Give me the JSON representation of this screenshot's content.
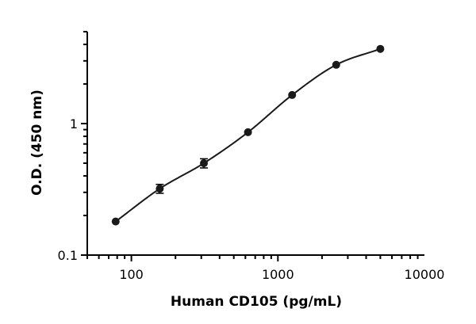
{
  "chart_data": {
    "type": "scatter",
    "xlabel": "Human CD105 (pg/mL)",
    "ylabel": "O.D. (450 nm)",
    "x_scale": "log",
    "y_scale": "log",
    "xlim": [
      50,
      10000
    ],
    "ylim": [
      0.1,
      5
    ],
    "x_ticks": [
      {
        "value": 100,
        "label": "100"
      },
      {
        "value": 1000,
        "label": "1000"
      },
      {
        "value": 10000,
        "label": "10000"
      }
    ],
    "y_ticks": [
      {
        "value": 0.1,
        "label": "0.1"
      },
      {
        "value": 1,
        "label": "1"
      }
    ],
    "grid": false,
    "series": [
      {
        "points": [
          {
            "x": 78.125,
            "y": 0.18,
            "err": 0.005
          },
          {
            "x": 156.25,
            "y": 0.32,
            "err": 0.025
          },
          {
            "x": 312.5,
            "y": 0.5,
            "err": 0.04
          },
          {
            "x": 625,
            "y": 0.86,
            "err": 0.03
          },
          {
            "x": 1250,
            "y": 1.65,
            "err": 0.05
          },
          {
            "x": 2500,
            "y": 2.8,
            "err": 0.08
          },
          {
            "x": 5000,
            "y": 3.7,
            "err": 0.1
          }
        ],
        "fit_curve": "4PL",
        "marker_color": "#1a1a1a",
        "line_color": "#1a1a1a"
      }
    ]
  }
}
